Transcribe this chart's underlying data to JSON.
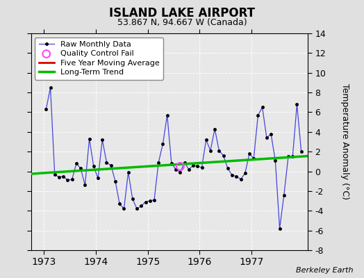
{
  "title": "ISLAND LAKE AIRPORT",
  "subtitle": "53.867 N, 94.667 W (Canada)",
  "ylabel": "Temperature Anomaly (°C)",
  "credit": "Berkeley Earth",
  "ylim": [
    -8,
    14
  ],
  "yticks": [
    -8,
    -6,
    -4,
    -2,
    0,
    2,
    4,
    6,
    8,
    10,
    12,
    14
  ],
  "xlim_start": 1972.75,
  "xlim_end": 1978.08,
  "xtick_positions": [
    1973,
    1974,
    1975,
    1976,
    1977
  ],
  "bg_color": "#e0e0e0",
  "plot_bg_color": "#e8e8e8",
  "raw_x": [
    1973.042,
    1973.125,
    1973.208,
    1973.292,
    1973.375,
    1973.458,
    1973.542,
    1973.625,
    1973.708,
    1973.792,
    1973.875,
    1973.958,
    1974.042,
    1974.125,
    1974.208,
    1974.292,
    1974.375,
    1974.458,
    1974.542,
    1974.625,
    1974.708,
    1974.792,
    1974.875,
    1974.958,
    1975.042,
    1975.125,
    1975.208,
    1975.292,
    1975.375,
    1975.458,
    1975.542,
    1975.625,
    1975.708,
    1975.792,
    1975.875,
    1975.958,
    1976.042,
    1976.125,
    1976.208,
    1976.292,
    1976.375,
    1976.458,
    1976.542,
    1976.625,
    1976.708,
    1976.792,
    1976.875,
    1976.958,
    1977.042,
    1977.125,
    1977.208,
    1977.292,
    1977.375,
    1977.458,
    1977.542,
    1977.625,
    1977.708,
    1977.792,
    1977.875,
    1977.958
  ],
  "raw_y": [
    6.3,
    8.5,
    -0.3,
    -0.6,
    -0.5,
    -0.9,
    -0.8,
    0.8,
    0.3,
    -1.4,
    3.3,
    0.5,
    -0.7,
    3.2,
    0.9,
    0.6,
    -1.0,
    -3.3,
    -3.8,
    -0.1,
    -2.8,
    -3.8,
    -3.5,
    -3.1,
    -3.0,
    -2.9,
    0.9,
    2.8,
    5.7,
    0.8,
    0.2,
    -0.1,
    0.9,
    0.2,
    0.6,
    0.5,
    0.4,
    3.2,
    2.1,
    4.3,
    2.1,
    1.6,
    0.3,
    -0.4,
    -0.5,
    -0.8,
    -0.2,
    1.8,
    1.3,
    5.7,
    6.5,
    3.4,
    3.8,
    1.1,
    -5.8,
    -2.4,
    1.5,
    1.5,
    6.8,
    2.0
  ],
  "qc_fail_x": [
    1975.625
  ],
  "qc_fail_y": [
    0.5
  ],
  "trend_x": [
    1972.75,
    1978.08
  ],
  "trend_y": [
    -0.25,
    1.55
  ],
  "moving_avg_x": [],
  "moving_avg_y": [],
  "line_color": "#4444dd",
  "dot_color": "#000000",
  "trend_color": "#00bb00",
  "moving_avg_color": "#dd0000",
  "qc_color": "#ff44ff"
}
